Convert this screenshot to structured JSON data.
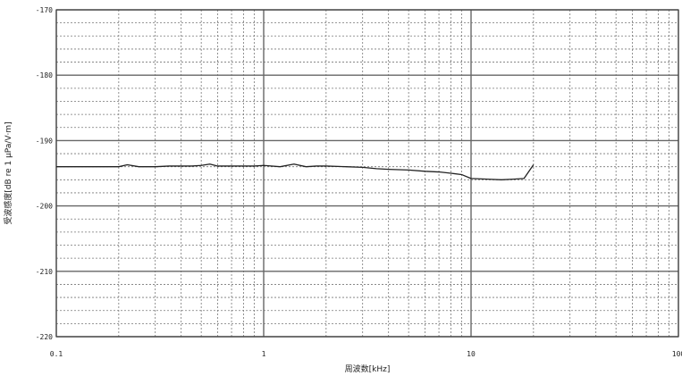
{
  "chart_data": {
    "type": "line",
    "title": "",
    "xlabel": "周波数[kHz]",
    "ylabel": "受波感度[dB re 1 µPa/V·m]",
    "x_scale": "log",
    "xlim": [
      0.1,
      100
    ],
    "ylim": [
      -220,
      -170
    ],
    "x_ticks": [
      0.1,
      1,
      10,
      100
    ],
    "x_tick_labels": [
      "0.1",
      "1",
      "10",
      "100"
    ],
    "y_ticks": [
      -170,
      -180,
      -190,
      -200,
      -210,
      -220
    ],
    "y_tick_labels": [
      "-170",
      "-180",
      "-190",
      "-200",
      "-210",
      "-220"
    ],
    "grid": true,
    "legend": "none",
    "series": [
      {
        "color": "#222222",
        "x": [
          0.1,
          0.15,
          0.2,
          0.22,
          0.25,
          0.3,
          0.35,
          0.4,
          0.45,
          0.5,
          0.55,
          0.6,
          0.7,
          0.8,
          0.9,
          1.0,
          1.2,
          1.4,
          1.6,
          1.8,
          2.0,
          2.5,
          3.0,
          3.5,
          4.0,
          5.0,
          6.0,
          7.0,
          8.0,
          9.0,
          10.0,
          12.0,
          14.0,
          16.0,
          18.0,
          20.0
        ],
        "y": [
          -194.0,
          -194.0,
          -194.0,
          -193.7,
          -194.0,
          -194.0,
          -193.9,
          -193.9,
          -193.9,
          -193.8,
          -193.6,
          -193.9,
          -193.9,
          -193.9,
          -193.9,
          -193.8,
          -194.0,
          -193.6,
          -194.0,
          -193.9,
          -193.9,
          -194.0,
          -194.1,
          -194.3,
          -194.4,
          -194.5,
          -194.7,
          -194.8,
          -195.0,
          -195.2,
          -195.8,
          -195.9,
          -196.0,
          -195.9,
          -195.8,
          -193.7
        ]
      }
    ]
  }
}
